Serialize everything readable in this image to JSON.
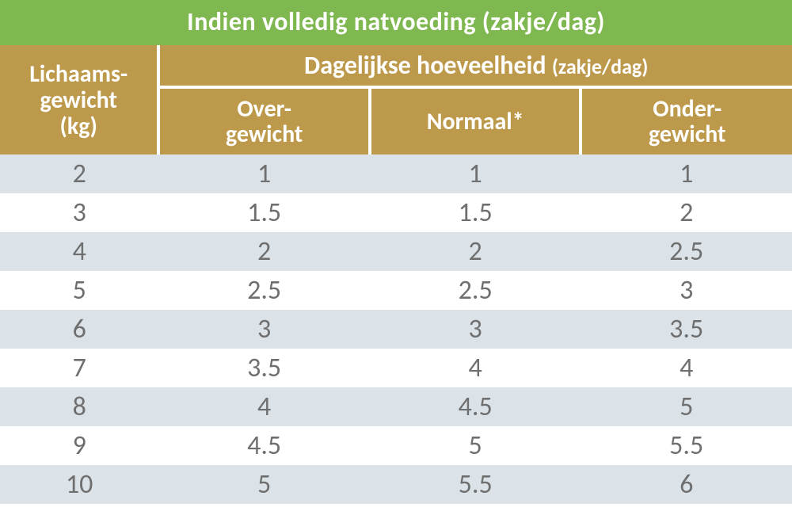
{
  "type": "table",
  "title": "Indien volledig natvoeding (zakje/dag)",
  "header": {
    "rowLabelLine1": "Lichaams-",
    "rowLabelLine2": "gewicht",
    "rowLabelLine3": "(kg)",
    "groupLabelMain": "Dagelijkse hoeveelheid ",
    "groupLabelSub": "(zakje/dag)",
    "columns": [
      {
        "line1": "Over-",
        "line2": "gewicht"
      },
      {
        "line1": "Normaal*",
        "line2": ""
      },
      {
        "line1": "Onder-",
        "line2": "gewicht"
      }
    ]
  },
  "rows": [
    {
      "weight": "2",
      "over": "1",
      "normal": "1",
      "under": "1"
    },
    {
      "weight": "3",
      "over": "1.5",
      "normal": "1.5",
      "under": "2"
    },
    {
      "weight": "4",
      "over": "2",
      "normal": "2",
      "under": "2.5"
    },
    {
      "weight": "5",
      "over": "2.5",
      "normal": "2.5",
      "under": "3"
    },
    {
      "weight": "6",
      "over": "3",
      "normal": "3",
      "under": "3.5"
    },
    {
      "weight": "7",
      "over": "3.5",
      "normal": "4",
      "under": "4"
    },
    {
      "weight": "8",
      "over": "4",
      "normal": "4.5",
      "under": "5"
    },
    {
      "weight": "9",
      "over": "4.5",
      "normal": "5",
      "under": "5.5"
    },
    {
      "weight": "10",
      "over": "5",
      "normal": "5.5",
      "under": "6"
    }
  ],
  "colors": {
    "titleBg": "#7fb850",
    "headerBg": "#bd994b",
    "headerText": "#ffffff",
    "rowOdd": "#dbe3e8",
    "rowEven": "#ffffff",
    "cellText": "#6f6f6f",
    "divider": "#ffffff"
  },
  "typography": {
    "titleFontSize": 32,
    "headerFontSize": 30,
    "subFontSize": 26,
    "cellFontSize": 34,
    "fontFamily": "Gill Sans"
  },
  "columnWidths": {
    "weight": 200,
    "data": 266
  },
  "dividerWidth": 4
}
